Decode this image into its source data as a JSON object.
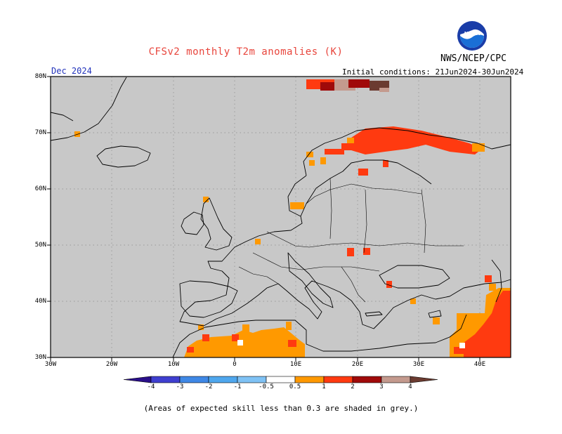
{
  "header": {
    "title": "CFSv2 monthly T2m anomalies (K)",
    "agency": "NWS/NCEP/CPC",
    "logo_text": "NOAA",
    "month": "Dec 2024",
    "initial_conditions": "Initial conditions: 21Jun2024-30Jun2024"
  },
  "map": {
    "projection": "lat-lon",
    "extent": {
      "lon": [
        -30,
        45
      ],
      "lat": [
        30,
        80
      ]
    },
    "background_color": "#c8c8c8",
    "grid": "dotted",
    "lat_labels": [
      "80N",
      "70N",
      "60N",
      "50N",
      "40N",
      "30N"
    ],
    "lon_labels": [
      "30W",
      "20W",
      "10W",
      "0",
      "10E",
      "20E",
      "30E",
      "40E"
    ]
  },
  "colorbar": {
    "labels": [
      "-4",
      "-3",
      "-2",
      "-1",
      "-0.5",
      "0.5",
      "1",
      "2",
      "3",
      "4"
    ],
    "colors": [
      "#2a0f8a",
      "#3f3fd0",
      "#3f88e6",
      "#4fa7ee",
      "#7fc2f5",
      "#ffffff",
      "#ff9900",
      "#ff3a10",
      "#a00a0a",
      "#c49a8e",
      "#6b3b30"
    ]
  },
  "anomaly_regions": [
    {
      "name": "northern Scandinavia and Kola",
      "category": "1 to 2",
      "color": "#ff3a10"
    },
    {
      "name": "Norwegian coast fringe",
      "category": "0.5 to 1",
      "color": "#ff9900"
    },
    {
      "name": "Svalbard",
      "category": "2 to 4",
      "color": "#a00a0a"
    },
    {
      "name": "northwest Africa",
      "category": "0.5 to 1",
      "color": "#ff9900"
    },
    {
      "name": "eastern Mediterranean and Middle East",
      "category": "1 to 2",
      "color": "#ff3a10"
    }
  ],
  "footer": {
    "note": "(Areas of expected skill less than 0.3 are shaded in grey.)"
  }
}
